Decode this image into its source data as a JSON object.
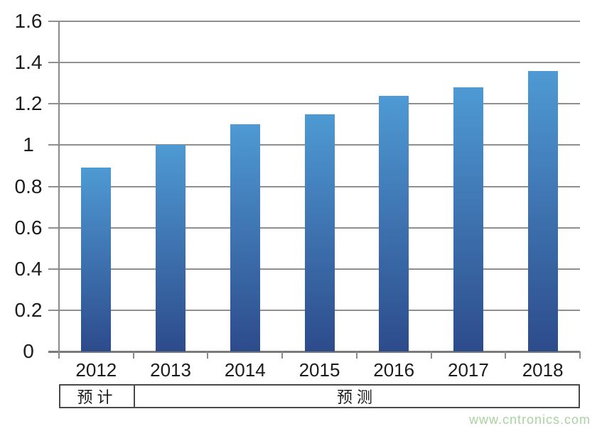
{
  "chart_data": {
    "type": "bar",
    "categories": [
      "2012",
      "2013",
      "2014",
      "2015",
      "2016",
      "2017",
      "2018"
    ],
    "values": [
      0.89,
      1.0,
      1.1,
      1.15,
      1.24,
      1.28,
      1.36
    ],
    "title": "",
    "xlabel": "",
    "ylabel": "",
    "ylim": [
      0,
      1.6
    ],
    "ytick_step": 0.2,
    "ytick_labels": [
      "0",
      "0.2",
      "0.4",
      "0.6",
      "0.8",
      "1",
      "1.2",
      "1.4",
      "1.6"
    ],
    "grid": true,
    "legend": "none",
    "bar_color_top": "#4e9ad4",
    "bar_color_bottom": "#2d4b8b"
  },
  "annotation_row": {
    "cells": [
      {
        "label": "预计",
        "columns": [
          "2012"
        ]
      },
      {
        "label": "预测",
        "columns": [
          "2013",
          "2014",
          "2015",
          "2016",
          "2017",
          "2018"
        ]
      }
    ]
  },
  "watermark": "www.cntronics.com",
  "colors": {
    "background": "#ffffff",
    "gridline": "#8f8f8f",
    "axis": "#8a8a8a",
    "baseline": "#7a7a7a",
    "text": "#1c1c1c",
    "table_border": "#4a4a4a",
    "watermark": "#a9d4a0"
  }
}
